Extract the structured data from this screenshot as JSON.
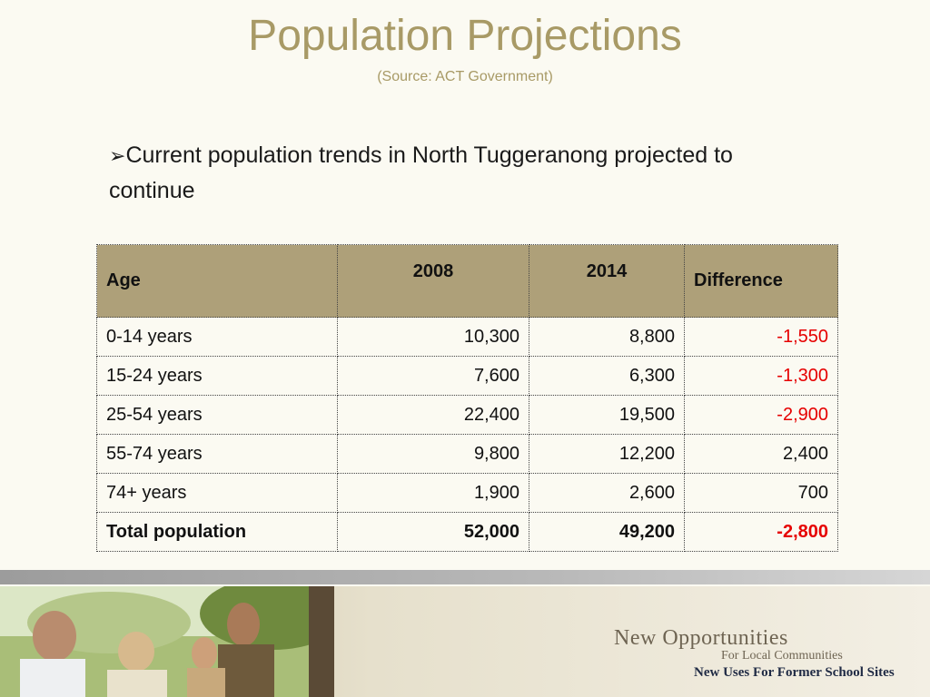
{
  "slide": {
    "title": "Population Projections",
    "subtitle": "(Source: ACT Government)",
    "bullet_marker": "➢",
    "bullet_text": "Current population trends in North Tuggeranong projected to continue"
  },
  "table": {
    "headers": [
      "Age",
      "2008",
      "2014",
      "Difference"
    ],
    "rows": [
      {
        "age": "0-14 years",
        "y2008": "10,300",
        "y2014": "8,800",
        "diff": "-1,550"
      },
      {
        "age": "15-24 years",
        "y2008": "7,600",
        "y2014": "6,300",
        "diff": "-1,300"
      },
      {
        "age": "25-54 years",
        "y2008": "22,400",
        "y2014": "19,500",
        "diff": "-2,900"
      },
      {
        "age": "55-74 years",
        "y2008": "9,800",
        "y2014": "12,200",
        "diff": "2,400"
      },
      {
        "age": "74+ years",
        "y2008": "1,900",
        "y2014": "2,600",
        "diff": "700"
      },
      {
        "age": "Total population",
        "y2008": "52,000",
        "y2014": "49,200",
        "diff": "-2,800"
      }
    ]
  },
  "footer": {
    "logo_main": "New Opportunities",
    "logo_sub": "For Local Communities",
    "logo_tagline": "New Uses For Former School Sites"
  },
  "colors": {
    "title": "#a89a66",
    "header_bg": "#aea079",
    "negative": "#e60000",
    "background": "#fbfaf2"
  }
}
